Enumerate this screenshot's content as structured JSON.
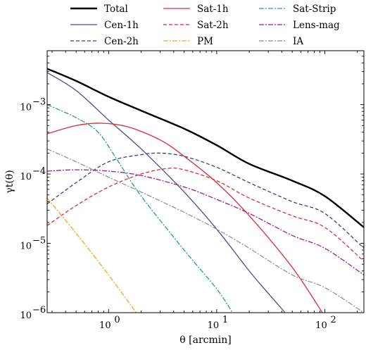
{
  "chart_data": {
    "type": "line",
    "xlabel": "θ [arcmin]",
    "ylabel": "γt(θ)",
    "xscale": "log",
    "yscale": "log",
    "xlim": [
      0.27,
      230
    ],
    "ylim": [
      1e-06,
      0.006
    ],
    "x_ticks": [
      {
        "value": 1,
        "base": "10",
        "exp": "0"
      },
      {
        "value": 10,
        "base": "10",
        "exp": "1"
      },
      {
        "value": 100,
        "base": "10",
        "exp": "2"
      }
    ],
    "y_ticks": [
      {
        "value": 1e-06,
        "base": "10",
        "exp": "−6"
      },
      {
        "value": 1e-05,
        "base": "10",
        "exp": "−5"
      },
      {
        "value": 0.0001,
        "base": "10",
        "exp": "−4"
      },
      {
        "value": 0.001,
        "base": "10",
        "exp": "−3"
      }
    ],
    "grid": false,
    "legend_position": "top (above plot, 3 columns)",
    "series": [
      {
        "name": "Total",
        "color": "#000000",
        "dash": "solid",
        "width": 2.4,
        "x": [
          0.27,
          0.5,
          1,
          2,
          5,
          10,
          20,
          50,
          100,
          230
        ],
        "y": [
          0.0033,
          0.0022,
          0.0013,
          0.00082,
          0.00045,
          0.00026,
          0.00014,
          8e-05,
          4.8e-05,
          1.7e-05
        ]
      },
      {
        "name": "Cen-1h",
        "color": "#4a4a9c",
        "dash": "solid",
        "width": 1.3,
        "x": [
          0.27,
          0.5,
          1,
          2,
          5,
          10,
          20,
          30,
          43
        ],
        "y": [
          0.0029,
          0.0016,
          0.0006,
          0.00023,
          5.5e-05,
          1.6e-05,
          4e-06,
          1.9e-06,
          1e-06
        ]
      },
      {
        "name": "Cen-2h",
        "color": "#3b3b8c",
        "dash": "5,3",
        "width": 1.3,
        "x": [
          0.27,
          0.5,
          1,
          2,
          3,
          5,
          10,
          20,
          50,
          100,
          230
        ],
        "y": [
          3.7e-05,
          7.5e-05,
          0.00015,
          0.00019,
          0.0002,
          0.00018,
          0.000125,
          7.5e-05,
          4e-05,
          2.7e-05,
          8.5e-06
        ]
      },
      {
        "name": "Sat-1h",
        "color": "#dc2a3c",
        "dash": "solid",
        "width": 1.3,
        "x": [
          0.27,
          0.5,
          0.85,
          1.5,
          3,
          5,
          10,
          20,
          50,
          95
        ],
        "y": [
          0.00038,
          0.0005,
          0.00054,
          0.00048,
          0.00031,
          0.00018,
          7.5e-05,
          2.5e-05,
          4.5e-06,
          1e-06
        ]
      },
      {
        "name": "Sat-2h",
        "color": "#dc2a3c",
        "dash": "5,3",
        "width": 1.3,
        "x": [
          0.27,
          0.5,
          1,
          2,
          3.5,
          5,
          10,
          20,
          50,
          100,
          230
        ],
        "y": [
          1.8e-05,
          3.5e-05,
          6.5e-05,
          0.0001,
          0.00012,
          0.000115,
          8e-05,
          4.5e-05,
          2.5e-05,
          1.7e-05,
          5.5e-06
        ]
      },
      {
        "name": "PM",
        "color": "#f5a623",
        "dash": "7,2,2,2",
        "width": 1.3,
        "x": [
          0.27,
          0.5,
          1,
          1.8
        ],
        "y": [
          4.5e-05,
          1.4e-05,
          3.5e-06,
          1e-06
        ]
      },
      {
        "name": "Sat-Strip",
        "color": "#2a9d8f",
        "dash": "7,2,2,2",
        "width": 1.3,
        "x": [
          0.27,
          0.5,
          0.8,
          1.2,
          2,
          5,
          10,
          14
        ],
        "y": [
          0.001,
          0.00065,
          0.0004,
          0.00016,
          4.8e-05,
          8e-06,
          2.2e-06,
          1e-06
        ]
      },
      {
        "name": "Lens-mag",
        "color": "#9b1f8f",
        "dash": "7,2,2,2",
        "width": 1.3,
        "x": [
          0.27,
          0.5,
          1,
          2,
          5,
          10,
          20,
          50,
          100,
          230
        ],
        "y": [
          0.00011,
          0.000115,
          0.00011,
          9.5e-05,
          6.5e-05,
          4.3e-05,
          2.7e-05,
          1.3e-05,
          8.5e-06,
          3.5e-06
        ]
      },
      {
        "name": "IA",
        "color": "#8c8c8c",
        "dash": "7,2,2,2",
        "width": 1.2,
        "x": [
          0.27,
          0.5,
          1,
          2,
          5,
          10,
          20,
          50,
          100,
          230
        ],
        "y": [
          0.00023,
          0.00015,
          9e-05,
          5.5e-05,
          2.8e-05,
          1.6e-05,
          8.5e-06,
          3.5e-06,
          2.3e-06,
          1e-06
        ]
      }
    ]
  }
}
